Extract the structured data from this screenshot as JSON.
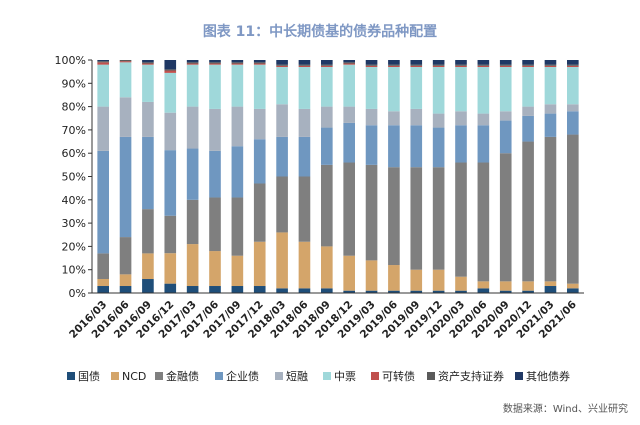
{
  "chart_data": {
    "type": "bar",
    "stacked": true,
    "title": "图表 11：中长期债基的债券品种配置",
    "source": "数据来源：Wind、兴业研究",
    "ylim": [
      0,
      100
    ],
    "yticks": [
      "0%",
      "10%",
      "20%",
      "30%",
      "40%",
      "50%",
      "60%",
      "70%",
      "80%",
      "90%",
      "100%"
    ],
    "legend_position": "bottom",
    "categories": [
      "2016/03",
      "2016/06",
      "2016/09",
      "2016/12",
      "2017/03",
      "2017/06",
      "2017/09",
      "2017/12",
      "2018/03",
      "2018/06",
      "2018/09",
      "2018/12",
      "2019/03",
      "2019/06",
      "2019/09",
      "2019/12",
      "2020/03",
      "2020/06",
      "2020/09",
      "2020/12",
      "2021/03",
      "2021/06"
    ],
    "series": [
      {
        "name": "国债",
        "color": "#1f4e79",
        "values": [
          3,
          3,
          6,
          4,
          3,
          3,
          3,
          3,
          2,
          2,
          2,
          1,
          1,
          1,
          1,
          1,
          1,
          2,
          1,
          1,
          3,
          2
        ]
      },
      {
        "name": "NCD",
        "color": "#d4a56a",
        "values": [
          3,
          5,
          11,
          13,
          18,
          15,
          13,
          19,
          24,
          20,
          18,
          15,
          13,
          11,
          9,
          9,
          6,
          3,
          4,
          4,
          2,
          2
        ]
      },
      {
        "name": "金融债",
        "color": "#7f7f7f",
        "values": [
          11,
          16,
          19,
          16,
          19,
          23,
          25,
          25,
          24,
          28,
          35,
          40,
          41,
          42,
          44,
          44,
          49,
          51,
          55,
          60,
          62,
          64
        ]
      },
      {
        "name": "企业债",
        "color": "#6f97c0",
        "values": [
          44,
          43,
          31,
          28,
          22,
          20,
          22,
          19,
          17,
          17,
          16,
          17,
          17,
          18,
          18,
          17,
          16,
          16,
          14,
          11,
          10,
          10
        ]
      },
      {
        "name": "短融",
        "color": "#a7b1bf",
        "values": [
          19,
          17,
          15,
          16,
          18,
          18,
          17,
          13,
          14,
          12,
          9,
          7,
          7,
          6,
          7,
          6,
          6,
          5,
          4,
          4,
          4,
          3
        ]
      },
      {
        "name": "中票",
        "color": "#9fd8da",
        "values": [
          18,
          15,
          16,
          17,
          18,
          19,
          18,
          19,
          16,
          18,
          17,
          18,
          18,
          19,
          18,
          20,
          19,
          20,
          19,
          17,
          16,
          16
        ]
      },
      {
        "name": "可转债",
        "color": "#c0504d",
        "values": [
          1,
          0.5,
          0.5,
          1,
          0.5,
          0.5,
          0.5,
          0.5,
          0.5,
          0.5,
          0.5,
          0.5,
          0.5,
          0.5,
          0.5,
          0.5,
          0.5,
          0.5,
          0.5,
          0.5,
          0.5,
          0.5
        ]
      },
      {
        "name": "资产支持证券",
        "color": "#5a5a5a",
        "values": [
          0.5,
          0.5,
          0.5,
          0.5,
          0.5,
          0.5,
          0.5,
          0.5,
          0.5,
          0.5,
          0.5,
          0.5,
          0.5,
          0.5,
          0.5,
          0.5,
          0.5,
          0.5,
          0.5,
          0.5,
          0.5,
          0.5
        ]
      },
      {
        "name": "其他债券",
        "color": "#1f3864",
        "values": [
          0.5,
          0,
          1,
          4,
          1,
          1,
          1,
          1,
          2,
          2,
          2,
          1,
          2,
          2,
          2,
          2,
          2,
          2,
          2,
          2,
          2,
          2
        ]
      }
    ]
  }
}
